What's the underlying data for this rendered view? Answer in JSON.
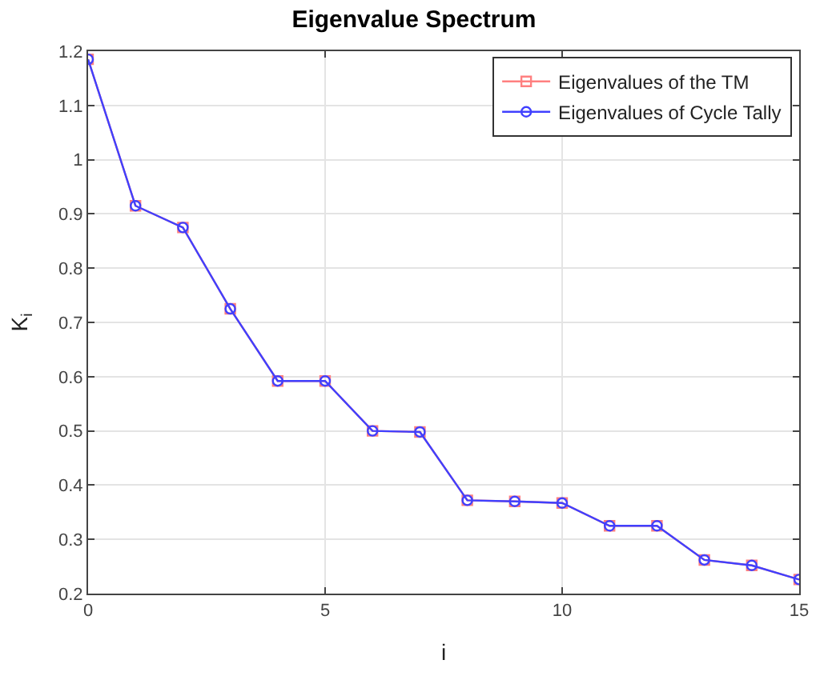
{
  "chart_data": {
    "type": "line",
    "title": "Eigenvalue Spectrum",
    "xlabel": "i",
    "ylabel": "K$_{i}$",
    "x": [
      0,
      1,
      2,
      3,
      4,
      5,
      6,
      7,
      8,
      9,
      10,
      11,
      12,
      13,
      14,
      15
    ],
    "series": [
      {
        "name": "Eigenvalues of the TM",
        "color": "#ff8080",
        "marker": "square",
        "values": [
          1.185,
          0.915,
          0.875,
          0.725,
          0.592,
          0.592,
          0.5,
          0.498,
          0.372,
          0.37,
          0.367,
          0.325,
          0.325,
          0.262,
          0.252,
          0.226
        ]
      },
      {
        "name": "Eigenvalues of Cycle Tally",
        "color": "#4040ff",
        "marker": "circle",
        "values": [
          1.185,
          0.915,
          0.875,
          0.725,
          0.592,
          0.592,
          0.5,
          0.498,
          0.372,
          0.37,
          0.367,
          0.325,
          0.325,
          0.262,
          0.252,
          0.226
        ]
      }
    ],
    "xlim": [
      0,
      15
    ],
    "xticks": [
      0,
      5,
      10,
      15
    ],
    "ylim": [
      0.2,
      1.2
    ],
    "yticks": [
      0.2,
      0.3,
      0.4,
      0.5,
      0.6,
      0.7,
      0.8,
      0.9,
      1,
      1.1,
      1.2
    ],
    "grid": true,
    "legend": "top right",
    "line_style": "solid"
  }
}
